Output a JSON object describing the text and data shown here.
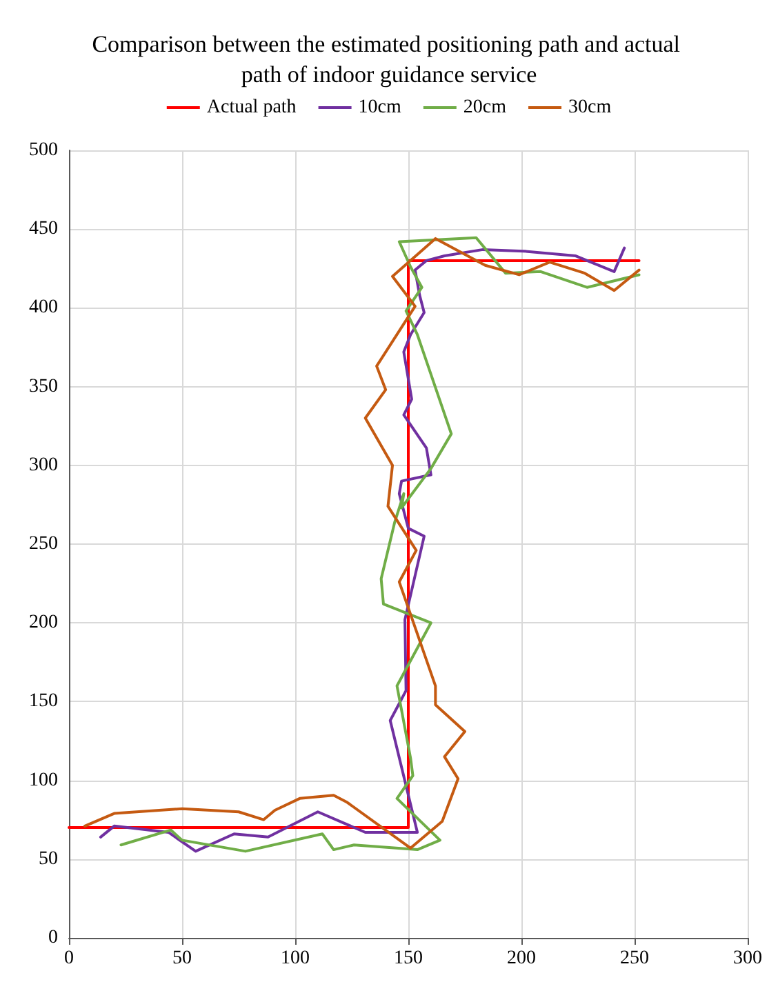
{
  "chart_data": {
    "type": "line",
    "title": "Comparison between the estimated positioning path and actual path of indoor guidance service",
    "series": [
      {
        "name": "Actual path",
        "color": "#ff0000",
        "x": [
          0,
          150,
          150,
          252
        ],
        "values": [
          70,
          70,
          430,
          430
        ]
      },
      {
        "name": "10cm",
        "color": "#7030a0",
        "x": [
          14,
          20,
          44,
          56,
          73,
          88,
          110,
          131,
          154,
          142,
          149,
          148.5,
          157,
          150,
          146,
          147,
          160,
          158,
          148,
          151.5,
          148,
          151,
          157,
          155,
          153,
          158,
          166,
          183,
          201,
          224,
          241,
          245.5
        ],
        "values": [
          64,
          71,
          67,
          55,
          66,
          64,
          80,
          67,
          67,
          138,
          157,
          202,
          255,
          260,
          282,
          290,
          294,
          311,
          332,
          342,
          372,
          383,
          397,
          408,
          424,
          430,
          433,
          437,
          436,
          433,
          423,
          438
        ]
      },
      {
        "name": "20cm",
        "color": "#70ad47",
        "x": [
          23,
          45,
          50,
          78,
          112,
          117,
          126,
          154,
          164,
          145,
          152,
          151,
          145,
          160,
          139,
          138,
          144,
          148,
          147,
          160,
          169,
          154,
          149,
          156,
          151,
          146,
          180,
          193,
          208.5,
          229,
          252
        ],
        "values": [
          59,
          68.5,
          62,
          55,
          66,
          56,
          59,
          56,
          62,
          88.5,
          103,
          114,
          160,
          200,
          212,
          228,
          264,
          282,
          273,
          298,
          320,
          383,
          398,
          413,
          426,
          442,
          444.5,
          422,
          423,
          413,
          421
        ]
      },
      {
        "name": "30cm",
        "color": "#c55a11",
        "x": [
          7,
          20,
          50,
          75,
          86,
          91,
          102,
          117,
          123,
          151,
          165,
          172,
          166,
          175,
          162,
          162,
          146,
          153.5,
          141,
          143,
          131,
          140,
          136,
          153,
          143,
          162,
          184,
          199,
          212.5,
          228,
          241,
          252
        ],
        "values": [
          71,
          79,
          82,
          80,
          75,
          81,
          88.5,
          90.5,
          86,
          57,
          74,
          101,
          115,
          131,
          148,
          160,
          226,
          246,
          274,
          300,
          330,
          348,
          363,
          401,
          420,
          444,
          427,
          421,
          429,
          422,
          411,
          424
        ]
      }
    ],
    "xlim": [
      0,
      300
    ],
    "xticks": [
      0,
      50,
      100,
      150,
      200,
      250,
      300
    ],
    "ylim": [
      0,
      500
    ],
    "yticks": [
      0,
      50,
      100,
      150,
      200,
      250,
      300,
      350,
      400,
      450,
      500
    ],
    "grid": true,
    "legend": "top",
    "marker": "none",
    "line_style": "solid"
  }
}
